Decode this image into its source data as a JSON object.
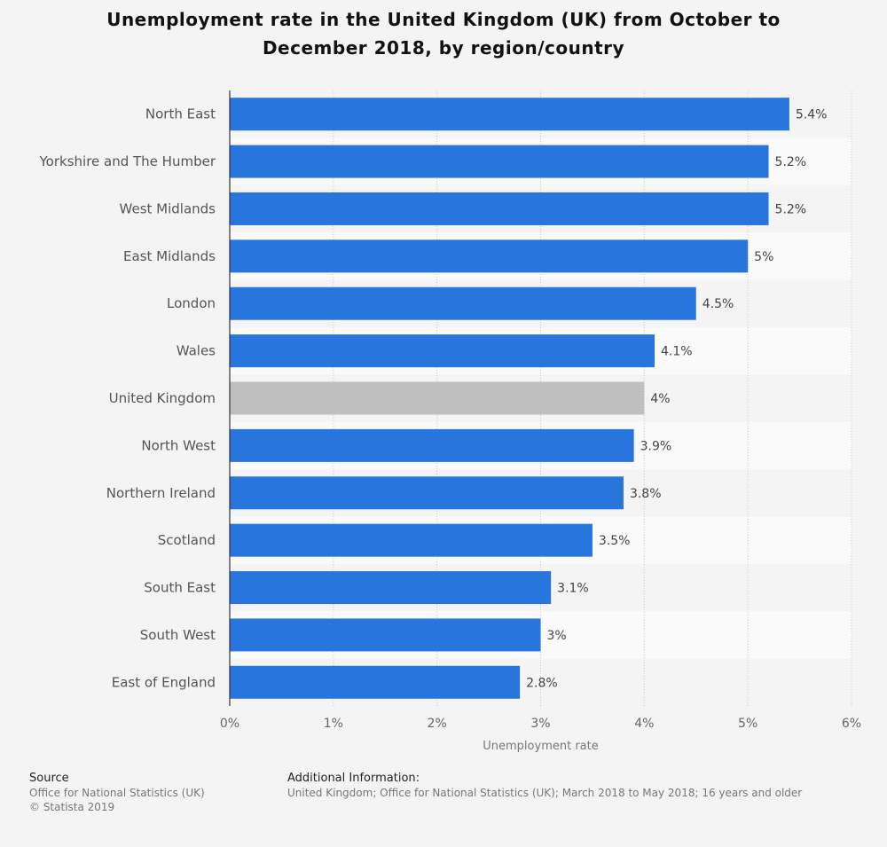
{
  "chart_data": {
    "type": "bar",
    "orientation": "horizontal",
    "title": "Unemployment rate in the United Kingdom (UK) from October to December 2018, by region/country",
    "xlabel": "Unemployment rate",
    "ylabel": "",
    "xlim": [
      0,
      6
    ],
    "ticks": [
      "0%",
      "1%",
      "2%",
      "3%",
      "4%",
      "5%",
      "6%"
    ],
    "grid": true,
    "categories": [
      "North East",
      "Yorkshire and The Humber",
      "West Midlands",
      "East Midlands",
      "London",
      "Wales",
      "United Kingdom",
      "North West",
      "Northern Ireland",
      "Scotland",
      "South East",
      "South West",
      "East of England"
    ],
    "values": [
      5.4,
      5.2,
      5.2,
      5,
      4.5,
      4.1,
      4,
      3.9,
      3.8,
      3.5,
      3.1,
      3,
      2.8
    ],
    "value_labels": [
      "5.4%",
      "5.2%",
      "5.2%",
      "5%",
      "4.5%",
      "4.1%",
      "4%",
      "3.9%",
      "3.8%",
      "3.5%",
      "3.1%",
      "3%",
      "2.8%"
    ],
    "highlight_category": "United Kingdom",
    "colors": {
      "bar": "#2876dd",
      "highlight": "#bfbfbf"
    }
  },
  "footer": {
    "source_heading": "Source",
    "source_lines": [
      "Office for National Statistics (UK)",
      "© Statista 2019"
    ],
    "info_heading": "Additional Information:",
    "info_text": "United Kingdom; Office for National Statistics (UK); March 2018 to May 2018; 16 years and older"
  }
}
